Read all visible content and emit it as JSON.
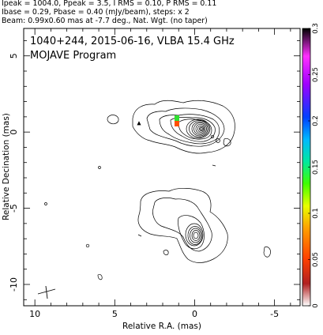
{
  "header": {
    "line1": "Ipeak = 1004.0, Ppeak = 3.5, I RMS = 0.10, P RMS = 0.11",
    "line2": "Ibase = 0.29, Pbase = 0.40 (mJy/beam), steps: x 2",
    "line3": "Beam: 0.99x0.60 mas at -7.7 deg., Nat. Wgt. (no taper)"
  },
  "chart_data": {
    "type": "contour",
    "title": "1040+244, 2015-06-16, VLBA 15.4 GHz",
    "subtitle": "MOJAVE Program",
    "xlabel": "Relative R.A. (mas)",
    "ylabel": "Relative Decination (mas)",
    "xlim": [
      10.7,
      -6.6
    ],
    "ylim": [
      -11.4,
      6.8
    ],
    "x_ticks": [
      10,
      5,
      0,
      -5
    ],
    "y_ticks": [
      5,
      0,
      -5,
      -10
    ],
    "colorbar": {
      "range": [
        0,
        0.3
      ],
      "ticks": [
        0,
        0.05,
        0.1,
        0.15,
        0.2,
        0.25,
        0.3
      ]
    },
    "core_peak_mJy_per_beam": 1004.0,
    "base_contour_mJy_per_beam": 0.29,
    "contour_step_factor": 2,
    "beam": {
      "major_mas": 0.99,
      "minor_mas": 0.6,
      "pa_deg": -7.7
    },
    "components": [
      {
        "name": "core",
        "x_mas": 0.0,
        "y_mas": 0.2
      },
      {
        "name": "southern-feature",
        "x_mas": 0.3,
        "y_mas": -7.0
      }
    ]
  }
}
